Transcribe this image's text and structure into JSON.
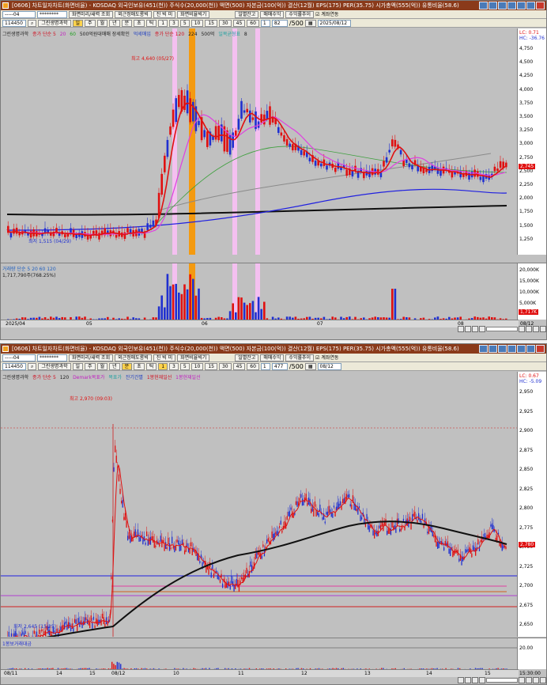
{
  "windows": [
    {
      "title": "[0606] 차트일자차트(화면비율) - KOSDAQ 외국인보유(451(천)) 주식수(20,000(천)) 액면(500) 자본금(100(억)) 결산(12월) EPS(175) PER(35.75) 시가총액(555(억)) 유통비율(58.6)",
      "toolbar1": {
        "code_field": "-----04",
        "account_field": "********",
        "buttons": [
          "화면미리/새력 조회",
          "외근정매도롱빅",
          "진 빅 미",
          "화면비율빅기"
        ],
        "buttons_right": [
          "일별잔고",
          "매매수익",
          "수익률추이"
        ],
        "checkbox_label": "계좌연동"
      },
      "toolbar2": {
        "stock_code": "114450",
        "stock_name": "그린생명과학",
        "period_buttons": [
          "일",
          "주",
          "월",
          "년",
          "분",
          "초",
          "틱"
        ],
        "minute_buttons": [
          "1",
          "3",
          "5",
          "10",
          "15",
          "30",
          "45",
          "60"
        ],
        "count_field": "1",
        "bars_field": "82",
        "bars_total": "/500",
        "date_field": "2025/08/12",
        "selected_period": "일"
      },
      "info_line": {
        "items": [
          "그린생명과학",
          "종가 단순 5",
          "20",
          "60",
          "500억원대매매 장세확인",
          "억세매입",
          "종가 단순 120",
          "224",
          "500억",
          "일목균형표",
          "8"
        ],
        "colors": [
          "#202020",
          "#d01020",
          "#c020c0",
          "#20a020",
          "#202020",
          "#2040c0",
          "#d01020",
          "#202020",
          "#202020",
          "#20a0a0",
          "#202020"
        ]
      },
      "lc_label": "LC: 0.71",
      "hc_label": "HC: -36.76",
      "price_ticks": [
        "4,750",
        "4,500",
        "4,250",
        "4,000",
        "3,750",
        "3,500",
        "3,250",
        "3,000",
        "2,750",
        "2,500",
        "2,250",
        "2,000",
        "1,750",
        "1,500",
        "1,250"
      ],
      "current_price_label": "2,745",
      "high_annotation": "최고 4,640 (05/27)",
      "low_annotation": "최저 1,515 (04/29)",
      "volume_info": "거래량 단순 5 20 60 120",
      "volume_value": "1,717,790주(768.25%)",
      "volume_ticks": [
        "20,000K",
        "15,000K",
        "10,000K",
        "5,000K"
      ],
      "volume_label": "1,717K",
      "x_ticks": [
        "2025/04",
        "05",
        "06",
        "07",
        "08",
        "08/12"
      ]
    },
    {
      "title": "[0606] 차트일자차트(화면비율) - KOSDAQ 외국인보유(451(천)) 주식수(20,000(천)) 액면(500) 자본금(100(억)) 결산(12월) EPS(175) PER(35.75) 시가총액(555(억)) 유통비율(58.6)",
      "toolbar1": {
        "code_field": "-----04",
        "account_field": "********",
        "buttons": [
          "화면미리/새력 조회",
          "외근정매도롱빅",
          "진 빅 미",
          "화면비율빅기"
        ],
        "buttons_right": [
          "일별잔고",
          "매매수익",
          "수익률추이"
        ],
        "checkbox_label": "계좌연동"
      },
      "toolbar2": {
        "stock_code": "114450",
        "stock_name": "그린생명과학",
        "period_buttons": [
          "일",
          "주",
          "월",
          "년",
          "분",
          "초",
          "틱"
        ],
        "minute_buttons": [
          "1",
          "3",
          "5",
          "10",
          "15",
          "30",
          "45",
          "60"
        ],
        "count_field": "1",
        "bars_field": "477",
        "bars_total": "/500",
        "date_field": "08/12",
        "selected_period": "분"
      },
      "info_line": {
        "items": [
          "그린생명과학",
          "종가 단순 5",
          "120",
          "Demark목표가",
          "목표가",
          "잔기간별",
          "1봉현재일선",
          "1봉현재일선"
        ],
        "colors": [
          "#202020",
          "#d01020",
          "#202020",
          "#c020c0",
          "#20a0a0",
          "#2040c0",
          "#d01020",
          "#c020c0"
        ]
      },
      "lc_label": "LC: 0.67",
      "hc_label": "HC: -5.09",
      "price_ticks": [
        "2,950",
        "2,925",
        "2,900",
        "2,875",
        "2,850",
        "2,825",
        "2,800",
        "2,775",
        "2,750",
        "2,725",
        "2,700",
        "2,675",
        "2,650"
      ],
      "current_price_label": "2,780",
      "high_annotation": "최고 2,970 (09:03)",
      "low_annotation": "최저 2,645 (15:25)",
      "volume_info": "1봉보거래대금",
      "volume_ticks": [
        "20.00"
      ],
      "x_ticks": [
        "08/11",
        "14",
        "15",
        "08/12",
        "10",
        "11",
        "12",
        "13",
        "14",
        "15",
        "15:30:00"
      ]
    }
  ],
  "colors": {
    "up": "#e01010",
    "down": "#2030d0",
    "ma5": "#e01010",
    "ma20": "#e040e0",
    "ma60": "#40a040",
    "ma120": "#8a8a8a",
    "ma224": "#2020e0",
    "long": "#101010",
    "highlight_pink": "#f4c0f0",
    "highlight_orange": "#f49a10"
  }
}
